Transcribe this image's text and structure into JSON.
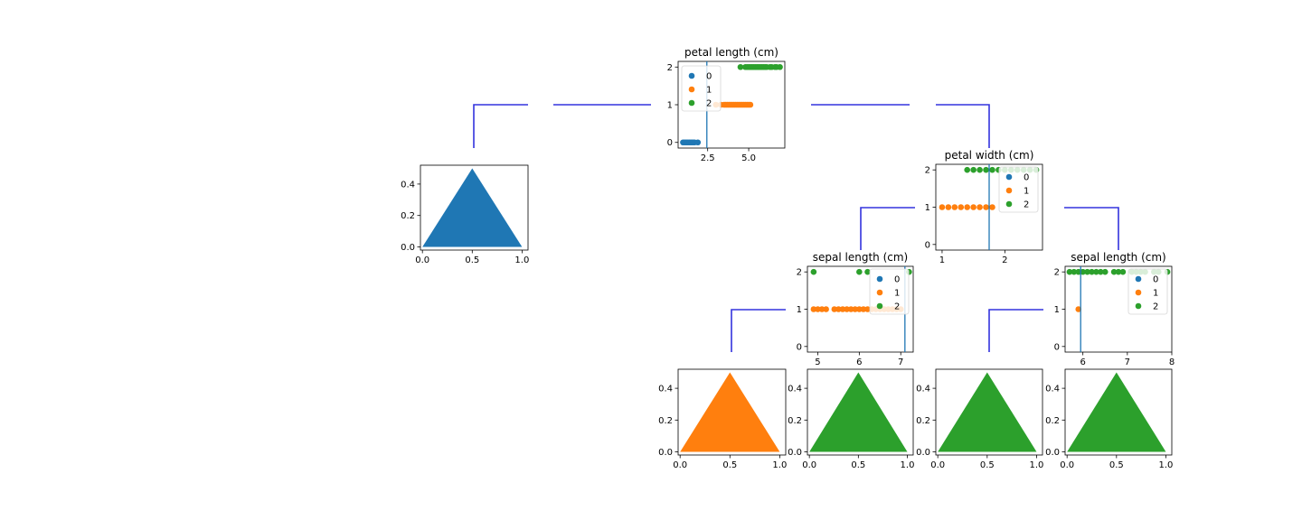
{
  "colors": {
    "class_0": "#1f77b4",
    "class_1": "#ff7f0e",
    "class_2": "#2ca02c",
    "edge": "#3333dd",
    "split_line": "#1f77b4"
  },
  "legend_labels": [
    "0",
    "1",
    "2"
  ],
  "split_nodes": [
    {
      "id": "root",
      "title": "petal length (cm)",
      "xlim": [
        0.7,
        7.2
      ],
      "ylim": [
        -0.15,
        2.15
      ],
      "xticks": [
        {
          "v": 2.5,
          "label": "2.5"
        },
        {
          "v": 5.0,
          "label": "5.0"
        }
      ],
      "yticks": [
        {
          "v": 0,
          "label": "0"
        },
        {
          "v": 1,
          "label": "1"
        },
        {
          "v": 2,
          "label": "2"
        }
      ],
      "split": 2.45,
      "points": [
        {
          "cls": 0,
          "x": [
            1.0,
            1.1,
            1.2,
            1.3,
            1.4,
            1.5,
            1.6,
            1.7,
            1.9
          ]
        },
        {
          "cls": 1,
          "x": [
            3.0,
            3.3,
            3.5,
            3.6,
            3.7,
            3.8,
            3.9,
            4.0,
            4.1,
            4.2,
            4.3,
            4.4,
            4.5,
            4.6,
            4.7,
            4.8,
            4.9,
            5.0,
            5.1
          ]
        },
        {
          "cls": 2,
          "x": [
            4.5,
            4.8,
            4.9,
            5.0,
            5.1,
            5.2,
            5.3,
            5.4,
            5.5,
            5.6,
            5.7,
            5.8,
            5.9,
            6.0,
            6.1,
            6.3,
            6.4,
            6.6,
            6.7,
            6.9
          ]
        }
      ]
    },
    {
      "id": "n2",
      "title": "petal width (cm)",
      "xlim": [
        0.9,
        2.6
      ],
      "ylim": [
        -0.15,
        2.15
      ],
      "xticks": [
        {
          "v": 1,
          "label": "1"
        },
        {
          "v": 2,
          "label": "2"
        }
      ],
      "yticks": [
        {
          "v": 0,
          "label": "0"
        },
        {
          "v": 1,
          "label": "1"
        },
        {
          "v": 2,
          "label": "2"
        }
      ],
      "split": 1.75,
      "points": [
        {
          "cls": 1,
          "x": [
            1.0,
            1.1,
            1.2,
            1.3,
            1.4,
            1.5,
            1.6,
            1.7,
            1.8
          ]
        },
        {
          "cls": 2,
          "x": [
            1.4,
            1.5,
            1.6,
            1.7,
            1.8,
            1.9,
            2.0,
            2.1,
            2.2,
            2.3,
            2.4,
            2.5
          ]
        }
      ]
    },
    {
      "id": "n3",
      "title": "sepal length (cm)",
      "xlim": [
        4.75,
        7.3
      ],
      "ylim": [
        -0.15,
        2.15
      ],
      "xticks": [
        {
          "v": 5,
          "label": "5"
        },
        {
          "v": 6,
          "label": "6"
        },
        {
          "v": 7,
          "label": "7"
        }
      ],
      "yticks": [
        {
          "v": 0,
          "label": "0"
        },
        {
          "v": 1,
          "label": "1"
        },
        {
          "v": 2,
          "label": "2"
        }
      ],
      "split": 7.1,
      "points": [
        {
          "cls": 1,
          "x": [
            4.9,
            5.0,
            5.1,
            5.2,
            5.4,
            5.5,
            5.6,
            5.7,
            5.8,
            5.9,
            6.0,
            6.1,
            6.2,
            6.3,
            6.4,
            6.5,
            6.6,
            6.7,
            6.8,
            6.9,
            7.0
          ]
        },
        {
          "cls": 2,
          "x": [
            4.9,
            6.0,
            6.2,
            7.2
          ]
        }
      ]
    },
    {
      "id": "n4",
      "title": "sepal length (cm)",
      "xlim": [
        5.6,
        8.0
      ],
      "ylim": [
        -0.15,
        2.15
      ],
      "xticks": [
        {
          "v": 6,
          "label": "6"
        },
        {
          "v": 7,
          "label": "7"
        },
        {
          "v": 8,
          "label": "8"
        }
      ],
      "yticks": [
        {
          "v": 0,
          "label": "0"
        },
        {
          "v": 1,
          "label": "1"
        },
        {
          "v": 2,
          "label": "2"
        }
      ],
      "split": 5.95,
      "points": [
        {
          "cls": 1,
          "x": [
            5.9
          ]
        },
        {
          "cls": 2,
          "x": [
            5.7,
            5.8,
            5.9,
            6.0,
            6.1,
            6.2,
            6.3,
            6.4,
            6.5,
            6.7,
            6.8,
            6.9,
            7.1,
            7.2,
            7.3,
            7.4,
            7.6,
            7.7,
            7.9
          ]
        }
      ]
    }
  ],
  "leaf_nodes": [
    {
      "id": "leaf-root-left",
      "cls": 0
    },
    {
      "id": "leaf-n3-left",
      "cls": 1
    },
    {
      "id": "leaf-n3-right",
      "cls": 2
    },
    {
      "id": "leaf-n4-left",
      "cls": 2
    },
    {
      "id": "leaf-n4-right",
      "cls": 2
    }
  ],
  "leaf_axes": {
    "xlim": [
      -0.02,
      1.06
    ],
    "ylim": [
      -0.02,
      0.52
    ],
    "xticks": [
      {
        "v": 0.0,
        "label": "0.0"
      },
      {
        "v": 0.5,
        "label": "0.5"
      },
      {
        "v": 1.0,
        "label": "1.0"
      }
    ],
    "yticks": [
      {
        "v": 0.0,
        "label": "0.0"
      },
      {
        "v": 0.2,
        "label": "0.2"
      },
      {
        "v": 0.4,
        "label": "0.4"
      }
    ]
  }
}
